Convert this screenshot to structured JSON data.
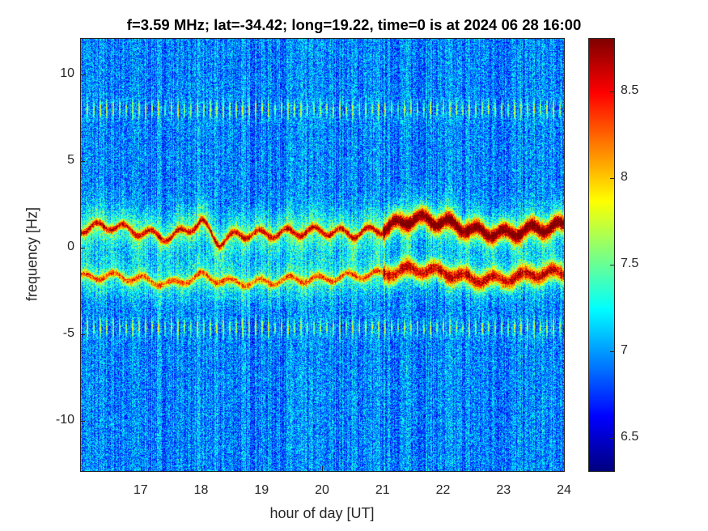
{
  "chart_data": {
    "type": "heatmap",
    "title": "f=3.59 MHz;  lat=-34.42; long=19.22, time=0 is at 2024 06 28 16:00",
    "xlabel": "hour of day [UT]",
    "ylabel": "frequency [Hz]",
    "xlim": [
      16,
      24
    ],
    "ylim": [
      -12.9,
      12.1
    ],
    "clim": [
      6.31,
      8.81
    ],
    "colormap": "jet",
    "xticks": [
      17,
      18,
      19,
      20,
      21,
      22,
      23,
      24
    ],
    "yticks": [
      10,
      5,
      0,
      -5,
      -10
    ],
    "cticks": [
      8.5,
      8,
      7.5,
      7,
      6.5
    ],
    "background_level": 6.95,
    "interference_lines_hz": [
      8.0,
      -4.6
    ],
    "upper_trace": [
      [
        16,
        1.1
      ],
      [
        16.5,
        1.3
      ],
      [
        17,
        0.9
      ],
      [
        17.5,
        0.6
      ],
      [
        18,
        1.5
      ],
      [
        18.3,
        0.3
      ],
      [
        18.6,
        0.8
      ],
      [
        19,
        0.8
      ],
      [
        19.5,
        0.9
      ],
      [
        20,
        1.0
      ],
      [
        20.5,
        0.8
      ],
      [
        21,
        1.1
      ],
      [
        21.5,
        1.7
      ],
      [
        22,
        1.5
      ],
      [
        22.5,
        1.0
      ],
      [
        23,
        0.8
      ],
      [
        23.5,
        1.1
      ],
      [
        24,
        1.3
      ]
    ],
    "lower_trace": [
      [
        16,
        -1.7
      ],
      [
        16.5,
        -1.6
      ],
      [
        17,
        -1.8
      ],
      [
        17.5,
        -2.1
      ],
      [
        18,
        -1.6
      ],
      [
        18.5,
        -2.0
      ],
      [
        19,
        -2.0
      ],
      [
        19.5,
        -1.8
      ],
      [
        20,
        -1.8
      ],
      [
        20.5,
        -1.6
      ],
      [
        21,
        -1.5
      ],
      [
        21.5,
        -1.2
      ],
      [
        22,
        -1.4
      ],
      [
        22.5,
        -1.8
      ],
      [
        23,
        -1.8
      ],
      [
        23.5,
        -1.5
      ],
      [
        24,
        -1.4
      ]
    ]
  }
}
